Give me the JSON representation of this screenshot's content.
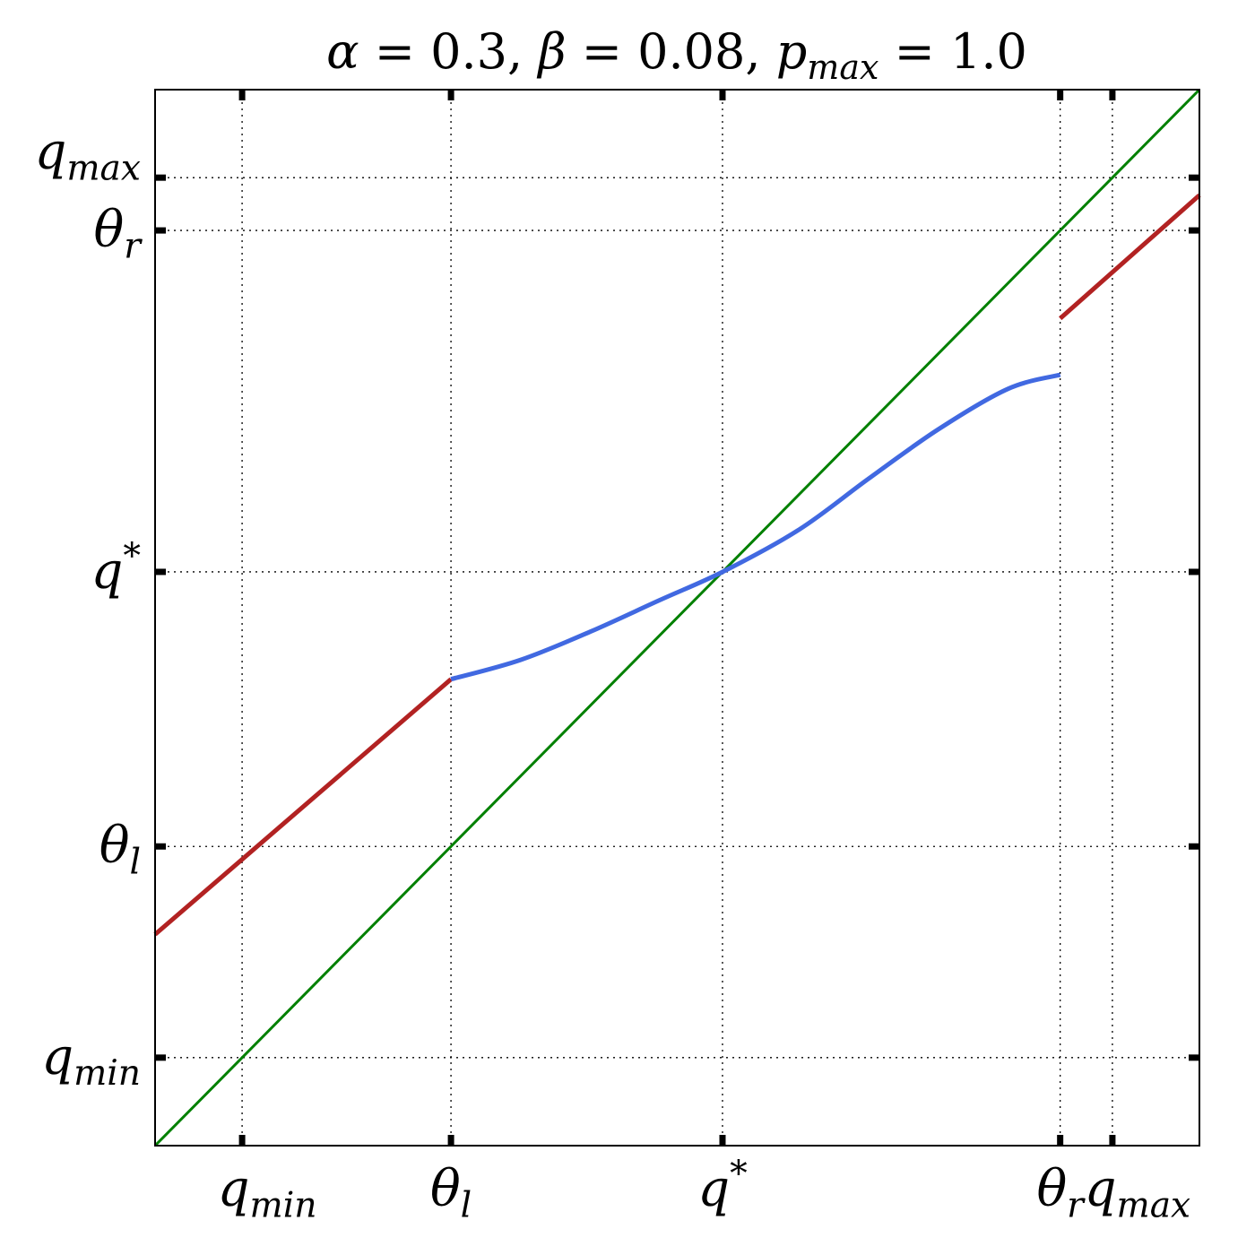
{
  "chart_data": {
    "type": "line",
    "title": {
      "parts": [
        {
          "sym": "α",
          "sub": "",
          "rest": " = 0.3, "
        },
        {
          "sym": "β",
          "sub": "",
          "rest": " = 0.08, "
        },
        {
          "sym": "p",
          "sub": "max",
          "rest": " = 1.0"
        }
      ]
    },
    "xlim": [
      -0.5,
      5.5
    ],
    "ylim": [
      -0.5,
      5.5
    ],
    "grid": "dotted",
    "x_ticks": [
      {
        "sym": "q",
        "sub": "min",
        "sup": "",
        "value": 0.0
      },
      {
        "sym": "θ",
        "sub": "l",
        "sup": "",
        "value": 1.2
      },
      {
        "sym": "q",
        "sub": "",
        "sup": "*",
        "value": 2.76
      },
      {
        "sym": "θ",
        "sub": "r",
        "sup": "",
        "value": 4.7
      },
      {
        "sym": "q",
        "sub": "max",
        "sup": "",
        "value": 5.0
      }
    ],
    "y_ticks": [
      {
        "sym": "q",
        "sub": "min",
        "sup": "",
        "value": 0.0
      },
      {
        "sym": "θ",
        "sub": "l",
        "sup": "",
        "value": 1.2
      },
      {
        "sym": "q",
        "sub": "",
        "sup": "*",
        "value": 2.76
      },
      {
        "sym": "θ",
        "sub": "r",
        "sup": "",
        "value": 4.7
      },
      {
        "sym": "q",
        "sub": "max",
        "sup": "",
        "value": 5.0
      }
    ],
    "series": [
      {
        "color": "#008000",
        "width": 3,
        "x": [
          -0.5,
          5.5
        ],
        "y": [
          -0.5,
          5.5
        ]
      },
      {
        "color": "#b22222",
        "width": 5,
        "x": [
          -0.5,
          1.2
        ],
        "y": [
          0.7,
          2.15
        ]
      },
      {
        "color": "#b22222",
        "width": 5,
        "x": [
          4.7,
          5.5
        ],
        "y": [
          4.2,
          4.9
        ]
      },
      {
        "color": "#4169e1",
        "width": 5,
        "x": [
          1.2,
          1.6,
          2.0,
          2.4,
          2.76,
          3.2,
          3.6,
          4.0,
          4.4,
          4.7
        ],
        "y": [
          2.15,
          2.26,
          2.42,
          2.6,
          2.76,
          3.0,
          3.29,
          3.57,
          3.8,
          3.88
        ]
      }
    ]
  }
}
